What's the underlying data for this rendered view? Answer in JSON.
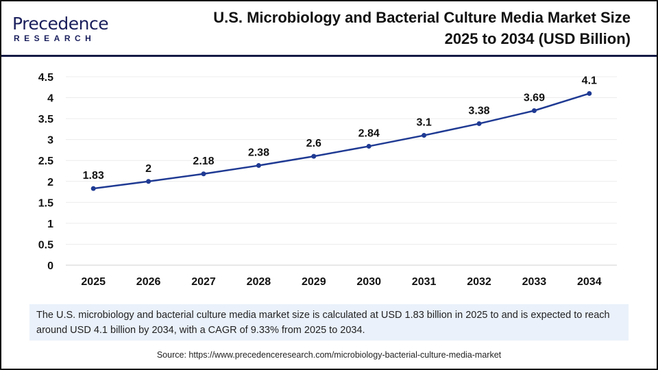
{
  "header": {
    "logo_main": "Precedence",
    "logo_sub": "RESEARCH",
    "title_line1": "U.S. Microbiology and Bacterial Culture Media Market Size",
    "title_line2": "2025 to 2034 (USD Billion)"
  },
  "chart_data": {
    "type": "line",
    "title": "U.S. Microbiology and Bacterial Culture Media Market Size 2025 to 2034 (USD Billion)",
    "categories": [
      "2025",
      "2026",
      "2027",
      "2028",
      "2029",
      "2030",
      "2031",
      "2032",
      "2033",
      "2034"
    ],
    "values": [
      1.83,
      2,
      2.18,
      2.38,
      2.6,
      2.84,
      3.1,
      3.38,
      3.69,
      4.1
    ],
    "data_labels": [
      "1.83",
      "2",
      "2.18",
      "2.38",
      "2.6",
      "2.84",
      "3.1",
      "3.38",
      "3.69",
      "4.1"
    ],
    "yticks": [
      "0",
      "0.5",
      "1",
      "1.5",
      "2",
      "2.5",
      "3",
      "3.5",
      "4",
      "4.5"
    ],
    "ylim": [
      0,
      4.5
    ],
    "grid": true,
    "line_color": "#1f3a93"
  },
  "note": "The U.S. microbiology and bacterial culture media market size is calculated at USD 1.83 billion in 2025 to and is expected to reach around USD 4.1 billion by 2034, with a CAGR of 9.33% from 2025 to 2034.",
  "source": "Source: https://www.precedenceresearch.com/microbiology-bacterial-culture-media-market"
}
